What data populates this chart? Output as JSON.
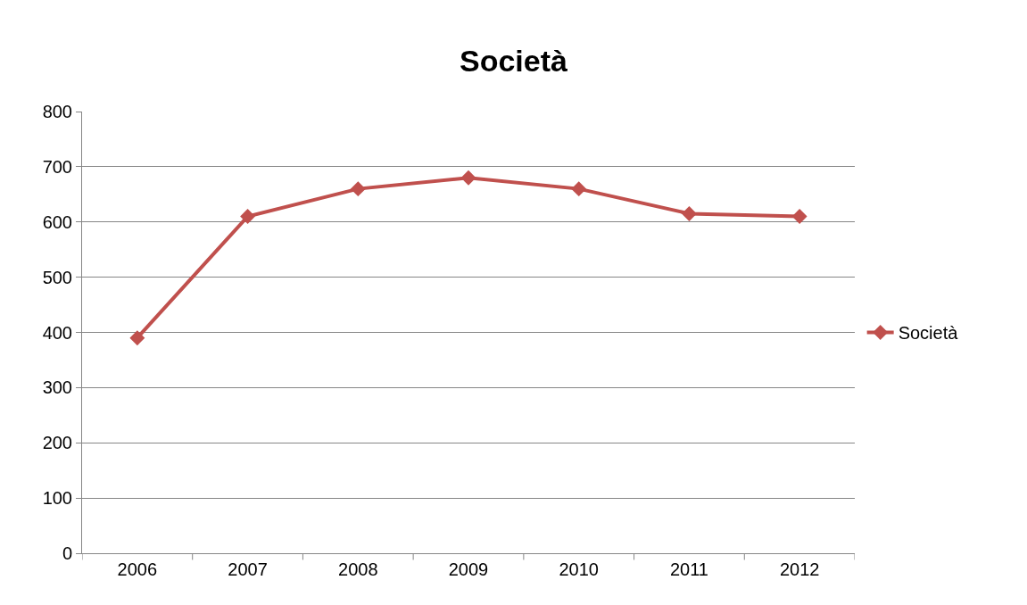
{
  "chart_data": {
    "type": "line",
    "title": "Società",
    "categories": [
      "2006",
      "2007",
      "2008",
      "2009",
      "2010",
      "2011",
      "2012"
    ],
    "series": [
      {
        "name": "Società",
        "color": "#c0504d",
        "values": [
          390,
          610,
          660,
          680,
          660,
          615,
          610
        ]
      }
    ],
    "ylim": [
      0,
      800
    ],
    "yticks": [
      0,
      100,
      200,
      300,
      400,
      500,
      600,
      700,
      800
    ],
    "grid": "y",
    "legend": "right",
    "marker": "diamond",
    "line_style": "solid"
  }
}
